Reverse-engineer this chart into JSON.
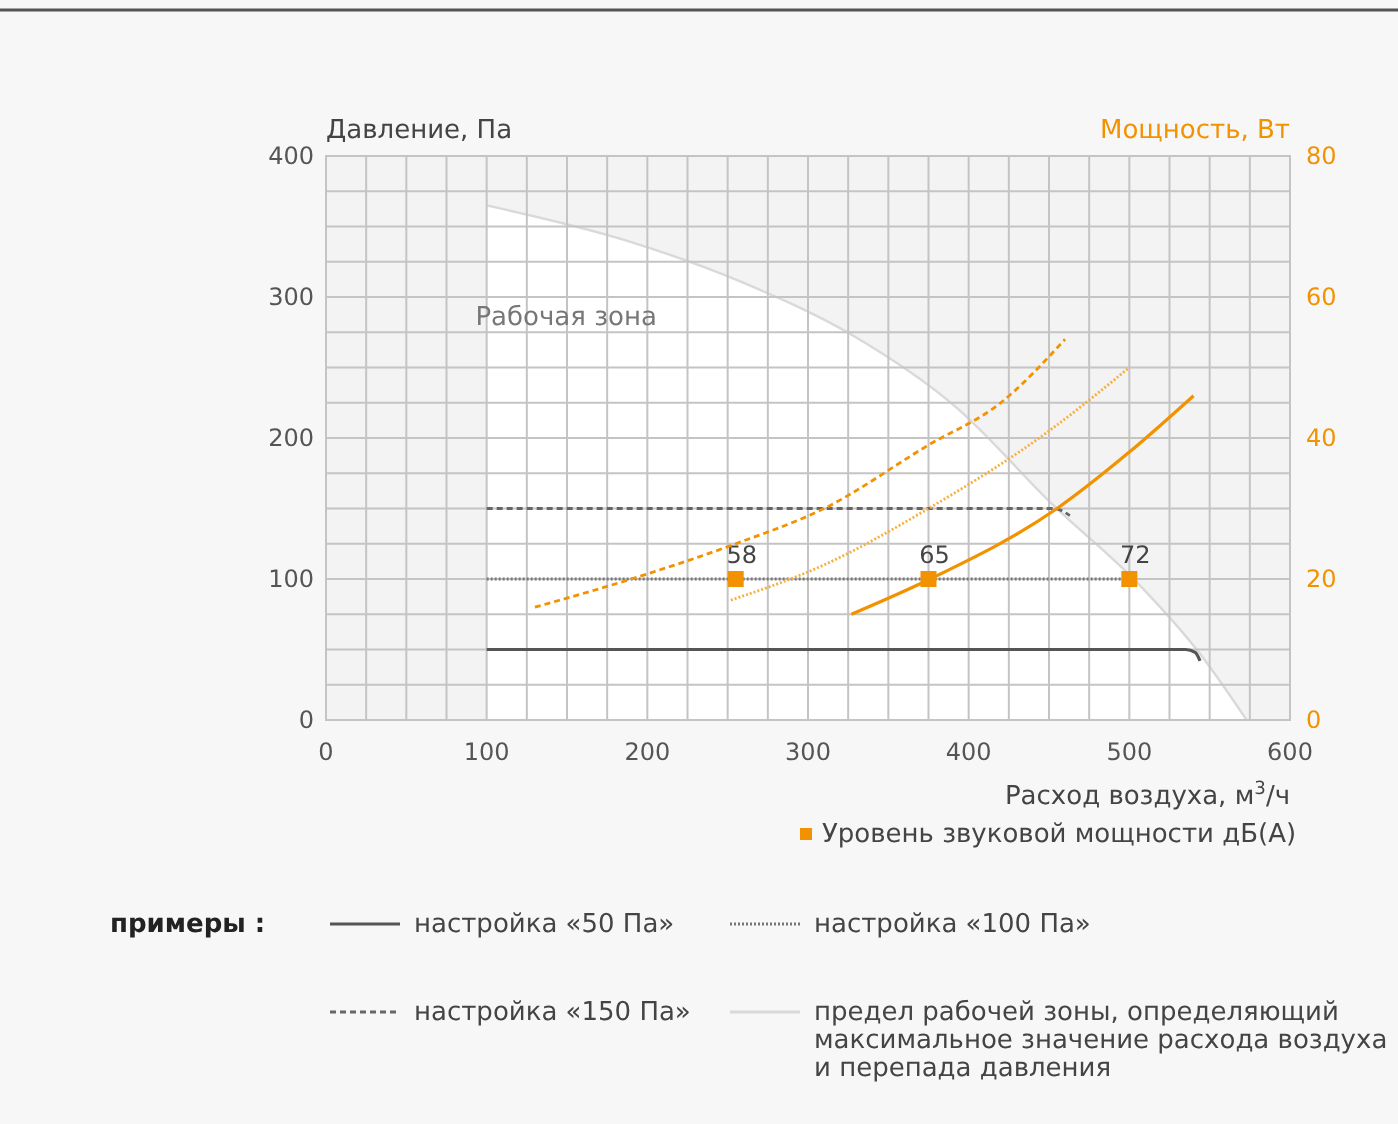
{
  "chart_data": {
    "type": "line",
    "ylabel": "Давление, Па",
    "y2label": "Мощность, Вт",
    "xlabel": "Расход воздуха, м$^{3}$/ч",
    "legend_title": "примеры :",
    "legend": "bottom",
    "grid": true,
    "annotations": [
      "Рабочая зона",
      {
        "text": "58",
        "x": 255,
        "y": 100
      },
      {
        "text": "65",
        "x": 375,
        "y": 100
      },
      {
        "text": "72",
        "x": 500,
        "y": 100
      }
    ],
    "xlim": [
      0,
      600
    ],
    "ylim": [
      0,
      400
    ],
    "y2lim": [
      0,
      80
    ],
    "xticks": [
      0,
      {
        "value": 25,
        "label": null
      },
      {
        "value": 50,
        "label": null
      },
      {
        "value": 75,
        "label": null
      },
      100,
      {
        "value": 125,
        "label": null
      },
      {
        "value": 150,
        "label": null
      },
      {
        "value": 175,
        "label": null
      },
      200,
      {
        "value": 225,
        "label": null
      },
      {
        "value": 250,
        "label": null
      },
      {
        "value": 275,
        "label": null
      },
      300,
      {
        "value": 325,
        "label": null
      },
      {
        "value": 350,
        "label": null
      },
      {
        "value": 375,
        "label": null
      },
      400,
      {
        "value": 425,
        "label": null
      },
      {
        "value": 450,
        "label": null
      },
      {
        "value": 475,
        "label": null
      },
      500,
      {
        "value": 525,
        "label": null
      },
      {
        "value": 550,
        "label": null
      },
      {
        "value": 575,
        "label": null
      },
      600
    ],
    "yticks": [
      0,
      {
        "value": 25,
        "label": null
      },
      {
        "value": 50,
        "label": null
      },
      {
        "value": 75,
        "label": null
      },
      100,
      {
        "value": 125,
        "label": null
      },
      {
        "value": 150,
        "label": null
      },
      {
        "value": 175,
        "label": null
      },
      200,
      {
        "value": 225,
        "label": null
      },
      {
        "value": 250,
        "label": null
      },
      {
        "value": 275,
        "label": null
      },
      300,
      {
        "value": 325,
        "label": null
      },
      {
        "value": 350,
        "label": null
      },
      {
        "value": 375,
        "label": null
      },
      400
    ],
    "y2ticks": [
      0,
      20,
      40,
      60,
      80
    ],
    "series": [
      {
        "type": "area",
        "name": "предел рабочей зоны, определяющий максимальное значение расхода воздуха и перепада давления",
        "color": "#d9d9d9",
        "line_style": "solid",
        "x": [
          100,
          187,
          260,
          329,
          391,
          453,
          507,
          544,
          573
        ],
        "values": [
          365,
          340,
          310,
          272,
          223,
          152,
          95,
          47,
          0
        ]
      },
      {
        "name": "настройка «50 Па»",
        "color": "#555555",
        "line_style": "solid",
        "x": [
          100,
          535,
          541,
          544
        ],
        "values": [
          50,
          50,
          48,
          42
        ]
      },
      {
        "name": "настройка «100 Па»",
        "color": "#777777",
        "line_style": "dotted",
        "x": [
          100,
          500,
          504
        ],
        "values": [
          100,
          100,
          95
        ]
      },
      {
        "name": "настройка «150 Па»",
        "color": "#666666",
        "line_style": "dashed",
        "x": [
          100,
          453,
          463
        ],
        "values": [
          150,
          150,
          145
        ]
      },
      {
        "axis": "y2",
        "color": "#f39200",
        "line_style": "dashed",
        "x": [
          130,
          190,
          255,
          310,
          375,
          420,
          460
        ],
        "values": [
          16,
          20,
          25,
          30,
          39,
          45,
          54
        ]
      },
      {
        "axis": "y2",
        "color": "#f7b040",
        "line_style": "dotted",
        "x": [
          252,
          310,
          375,
          450,
          500
        ],
        "values": [
          17,
          22,
          30,
          41,
          50
        ]
      },
      {
        "axis": "y2",
        "color": "#f39200",
        "line_style": "solid",
        "x": [
          327,
          376,
          455,
          500,
          540
        ],
        "values": [
          15,
          20,
          30,
          38,
          46
        ]
      },
      {
        "type": "scatter",
        "name": "Уровень звуковой мощности дБ(А)",
        "color": "#f39200",
        "marker": "square",
        "x": [
          255,
          375,
          500
        ],
        "values": [
          100,
          100,
          100
        ]
      }
    ]
  }
}
